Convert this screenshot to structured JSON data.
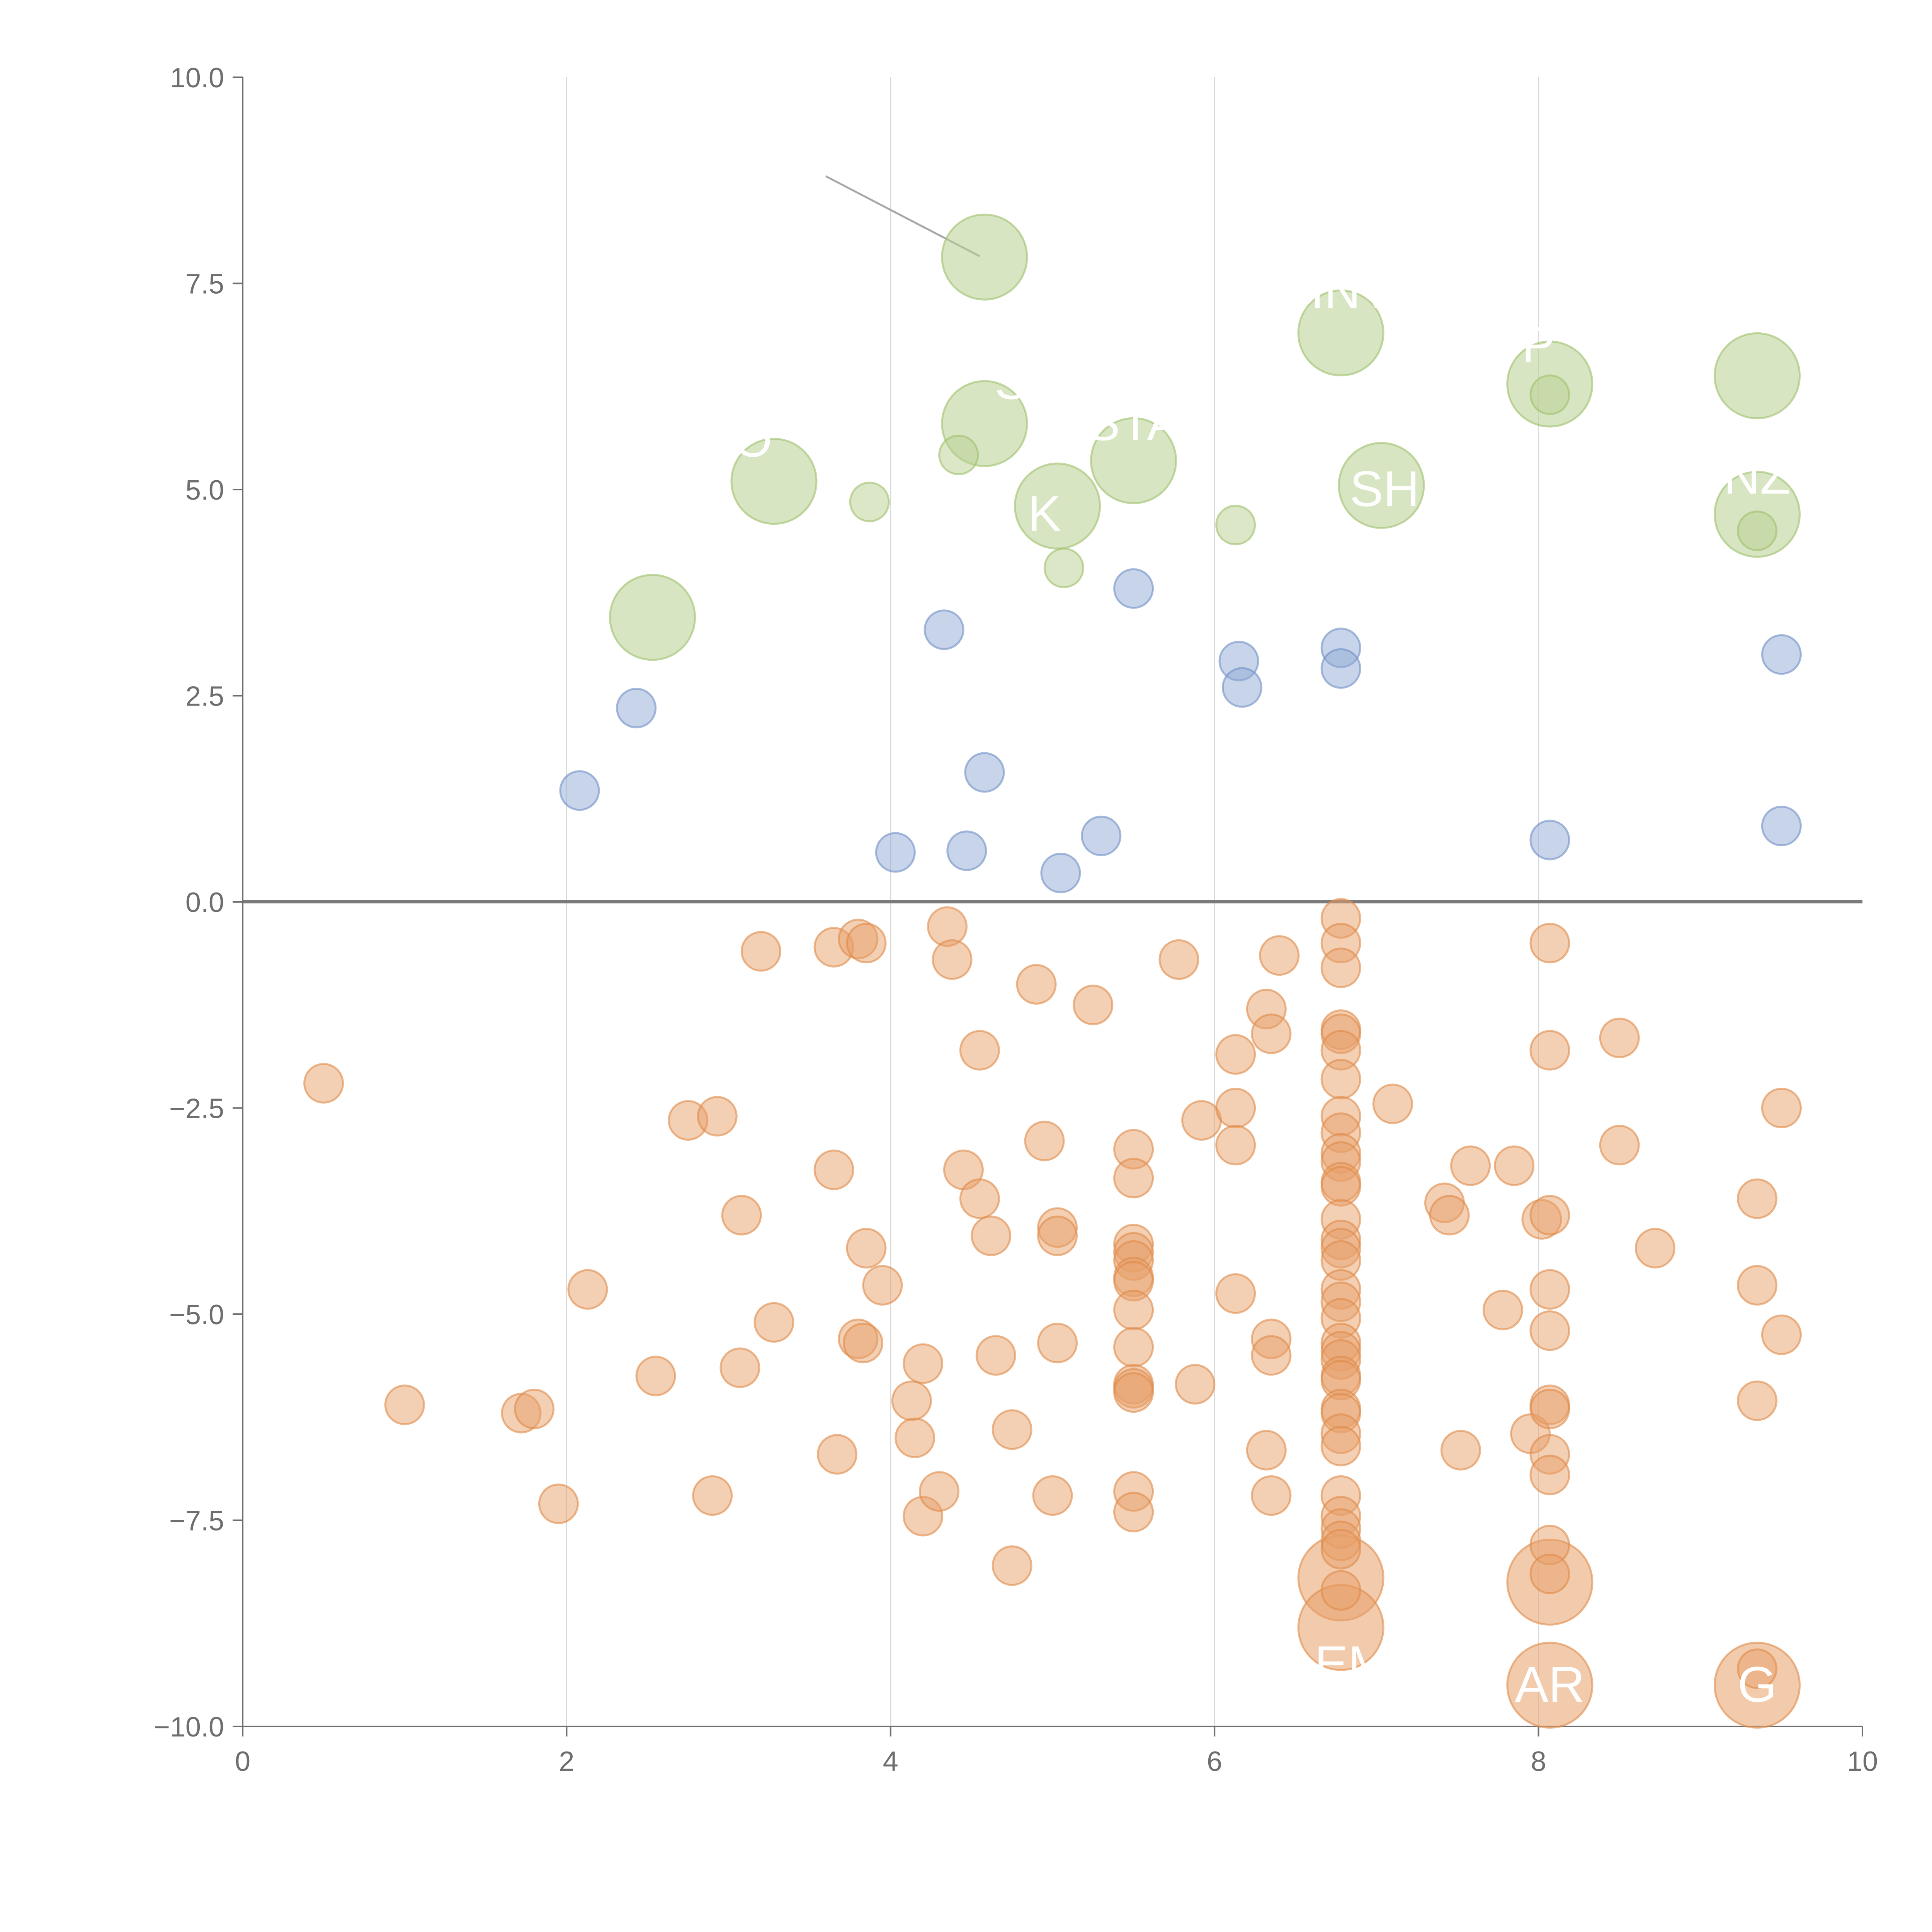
{
  "chart_data": {
    "type": "scatter",
    "title": "",
    "xlabel": "",
    "ylabel": "",
    "xlim": [
      0,
      10
    ],
    "ylim": [
      -10,
      10
    ],
    "x_ticks": [
      "0",
      "2",
      "4",
      "6",
      "8",
      "10"
    ],
    "y_ticks": [
      "10.0",
      "7.5",
      "5.0",
      "2.5",
      "0.0",
      "−2.5",
      "−5.0",
      "−7.5",
      "−10.0"
    ],
    "x_grid": [
      2,
      4,
      6,
      8
    ],
    "zero_line": 0,
    "colors": {
      "orange": "#e8a06a",
      "blue": "#8fa9d4",
      "green": "#b8d08f",
      "axis": "#6e6e6e",
      "grid": "#d9d9d9"
    },
    "series": [
      {
        "color": "orange",
        "points": [
          [
            0.5,
            -2.2
          ],
          [
            1.0,
            -6.1
          ],
          [
            1.72,
            -6.2
          ],
          [
            1.8,
            -6.15
          ],
          [
            1.95,
            -7.3
          ],
          [
            2.13,
            -4.7
          ],
          [
            2.55,
            -5.75
          ],
          [
            2.75,
            -2.65
          ],
          [
            2.93,
            -2.6
          ],
          [
            2.9,
            -7.2
          ],
          [
            3.08,
            -3.8
          ],
          [
            3.07,
            -5.65
          ],
          [
            3.2,
            -0.6
          ],
          [
            3.28,
            -5.1
          ],
          [
            3.65,
            -0.55
          ],
          [
            3.65,
            -3.25
          ],
          [
            3.67,
            -6.7
          ],
          [
            3.8,
            -0.45
          ],
          [
            3.85,
            -0.5
          ],
          [
            3.85,
            -4.2
          ],
          [
            3.8,
            -5.3
          ],
          [
            3.83,
            -5.35
          ],
          [
            3.95,
            -4.65
          ],
          [
            4.13,
            -6.05
          ],
          [
            4.15,
            -6.5
          ],
          [
            4.2,
            -5.6
          ],
          [
            4.2,
            -7.45
          ],
          [
            4.3,
            -7.15
          ],
          [
            4.35,
            -0.3
          ],
          [
            4.38,
            -0.7
          ],
          [
            4.45,
            -3.25
          ],
          [
            4.55,
            -1.8
          ],
          [
            4.55,
            -3.6
          ],
          [
            4.62,
            -4.05
          ],
          [
            4.65,
            -5.5
          ],
          [
            4.75,
            -6.4
          ],
          [
            4.75,
            -8.05
          ],
          [
            4.9,
            -1.0
          ],
          [
            4.95,
            -2.9
          ],
          [
            5.0,
            -7.2
          ],
          [
            5.03,
            -3.95
          ],
          [
            5.03,
            -4.05
          ],
          [
            5.03,
            -5.35
          ],
          [
            5.25,
            -1.25
          ],
          [
            5.5,
            -3.0
          ],
          [
            5.5,
            -3.35
          ],
          [
            5.5,
            -4.15
          ],
          [
            5.5,
            -4.25
          ],
          [
            5.5,
            -4.35
          ],
          [
            5.5,
            -4.55
          ],
          [
            5.5,
            -4.6
          ],
          [
            5.5,
            -4.95
          ],
          [
            5.5,
            -5.4
          ],
          [
            5.5,
            -5.85
          ],
          [
            5.5,
            -5.9
          ],
          [
            5.5,
            -5.95
          ],
          [
            5.5,
            -7.15
          ],
          [
            5.5,
            -7.4
          ],
          [
            5.78,
            -0.7
          ],
          [
            5.88,
            -5.85
          ],
          [
            5.92,
            -2.65
          ],
          [
            6.13,
            -1.85
          ],
          [
            6.13,
            -2.5
          ],
          [
            6.13,
            -2.95
          ],
          [
            6.13,
            -4.75
          ],
          [
            6.32,
            -1.3
          ],
          [
            6.35,
            -1.6
          ],
          [
            6.32,
            -6.65
          ],
          [
            6.35,
            -5.3
          ],
          [
            6.35,
            -5.5
          ],
          [
            6.35,
            -7.2
          ],
          [
            6.4,
            -0.65
          ],
          [
            6.78,
            -0.2
          ],
          [
            6.78,
            -0.5
          ],
          [
            6.78,
            -0.8
          ],
          [
            6.78,
            -1.55
          ],
          [
            6.78,
            -1.6
          ],
          [
            6.78,
            -1.8
          ],
          [
            6.78,
            -2.15
          ],
          [
            6.78,
            -2.6
          ],
          [
            6.78,
            -2.8
          ],
          [
            6.78,
            -3.05
          ],
          [
            6.78,
            -3.15
          ],
          [
            6.78,
            -3.4
          ],
          [
            6.78,
            -3.45
          ],
          [
            6.78,
            -3.85
          ],
          [
            6.78,
            -4.1
          ],
          [
            6.78,
            -4.2
          ],
          [
            6.78,
            -4.35
          ],
          [
            6.78,
            -4.7
          ],
          [
            6.78,
            -4.85
          ],
          [
            6.78,
            -5.05
          ],
          [
            6.78,
            -5.35
          ],
          [
            6.78,
            -5.45
          ],
          [
            6.78,
            -5.55
          ],
          [
            6.78,
            -5.75
          ],
          [
            6.78,
            -5.8
          ],
          [
            6.78,
            -6.15
          ],
          [
            6.78,
            -6.2
          ],
          [
            6.78,
            -6.45
          ],
          [
            6.78,
            -6.6
          ],
          [
            6.78,
            -7.2
          ],
          [
            6.78,
            -7.45
          ],
          [
            6.78,
            -7.6
          ],
          [
            6.78,
            -7.75
          ],
          [
            6.78,
            -7.85
          ],
          [
            6.78,
            -8.35
          ],
          [
            7.1,
            -2.45
          ],
          [
            7.42,
            -3.65
          ],
          [
            7.45,
            -3.8
          ],
          [
            7.52,
            -6.65
          ],
          [
            7.58,
            -3.2
          ],
          [
            7.85,
            -3.2
          ],
          [
            7.78,
            -4.95
          ],
          [
            7.95,
            -6.45
          ],
          [
            8.02,
            -3.85
          ],
          [
            8.07,
            -0.5
          ],
          [
            8.07,
            -1.8
          ],
          [
            8.07,
            -3.8
          ],
          [
            8.07,
            -4.7
          ],
          [
            8.07,
            -5.2
          ],
          [
            8.07,
            -6.1
          ],
          [
            8.07,
            -6.15
          ],
          [
            8.07,
            -6.7
          ],
          [
            8.07,
            -6.95
          ],
          [
            8.07,
            -7.8
          ],
          [
            8.07,
            -8.15
          ],
          [
            8.5,
            -1.65
          ],
          [
            8.5,
            -2.95
          ],
          [
            8.72,
            -4.2
          ],
          [
            9.35,
            -3.6
          ],
          [
            9.35,
            -4.65
          ],
          [
            9.35,
            -6.05
          ],
          [
            9.35,
            -9.3
          ],
          [
            9.5,
            -2.5
          ],
          [
            9.5,
            -5.25
          ]
        ]
      },
      {
        "color": "blue",
        "points": [
          [
            2.08,
            1.35
          ],
          [
            2.43,
            2.35
          ],
          [
            4.03,
            0.6
          ],
          [
            4.33,
            3.3
          ],
          [
            4.47,
            0.62
          ],
          [
            4.58,
            1.57
          ],
          [
            5.05,
            0.35
          ],
          [
            5.3,
            0.8
          ],
          [
            5.5,
            3.8
          ],
          [
            6.15,
            2.92
          ],
          [
            6.17,
            2.6
          ],
          [
            6.78,
            3.08
          ],
          [
            6.78,
            2.83
          ],
          [
            8.07,
            0.75
          ],
          [
            9.5,
            3.0
          ],
          [
            9.5,
            0.92
          ]
        ]
      },
      {
        "color": "green",
        "points": [
          [
            3.87,
            4.85
          ],
          [
            4.42,
            5.42
          ],
          [
            5.07,
            4.05
          ],
          [
            6.13,
            4.57
          ],
          [
            8.07,
            6.15
          ],
          [
            9.35,
            4.5
          ]
        ]
      }
    ],
    "large_points": [
      {
        "x": 2.53,
        "y": 3.45,
        "color": "green",
        "size": 2
      },
      {
        "x": 3.28,
        "y": 5.1,
        "color": "green",
        "size": 2
      },
      {
        "x": 4.58,
        "y": 7.82,
        "color": "green",
        "size": 2
      },
      {
        "x": 4.58,
        "y": 5.8,
        "color": "green",
        "size": 2
      },
      {
        "x": 5.03,
        "y": 4.8,
        "color": "green",
        "size": 2
      },
      {
        "x": 5.5,
        "y": 5.35,
        "color": "green",
        "size": 2
      },
      {
        "x": 6.78,
        "y": 6.9,
        "color": "green",
        "size": 2
      },
      {
        "x": 7.03,
        "y": 5.05,
        "color": "green",
        "size": 2
      },
      {
        "x": 8.07,
        "y": 6.28,
        "color": "green",
        "size": 2
      },
      {
        "x": 9.35,
        "y": 6.38,
        "color": "green",
        "size": 2
      },
      {
        "x": 9.35,
        "y": 4.7,
        "color": "green",
        "size": 2
      },
      {
        "x": 6.78,
        "y": -8.2,
        "color": "orange",
        "size": 2
      },
      {
        "x": 6.78,
        "y": -8.8,
        "color": "orange",
        "size": 2
      },
      {
        "x": 8.07,
        "y": -8.25,
        "color": "orange",
        "size": 2
      },
      {
        "x": 8.07,
        "y": -9.5,
        "color": "orange",
        "size": 2
      },
      {
        "x": 9.35,
        "y": -9.5,
        "color": "orange",
        "size": 2
      }
    ],
    "point_labels": [
      {
        "text": "O",
        "x": 3.15,
        "y": 5.4
      },
      {
        "text": "SE",
        "x": 4.85,
        "y": 6.1
      },
      {
        "text": "STA",
        "x": 5.5,
        "y": 5.6
      },
      {
        "text": "K",
        "x": 4.95,
        "y": 4.5
      },
      {
        "text": "INV",
        "x": 6.85,
        "y": 7.2
      },
      {
        "text": "P",
        "x": 8.0,
        "y": 6.55
      },
      {
        "text": "SH",
        "x": 7.05,
        "y": 4.8
      },
      {
        "text": "NZ",
        "x": 9.35,
        "y": 4.95
      },
      {
        "text": "EM",
        "x": 6.85,
        "y": -9.45
      },
      {
        "text": "AR",
        "x": 8.07,
        "y": -9.7
      },
      {
        "text": "G",
        "x": 9.35,
        "y": -9.7
      }
    ],
    "callout": {
      "x1": 3.6,
      "y1": 8.8,
      "x2": 4.55,
      "y2": 7.83
    }
  }
}
